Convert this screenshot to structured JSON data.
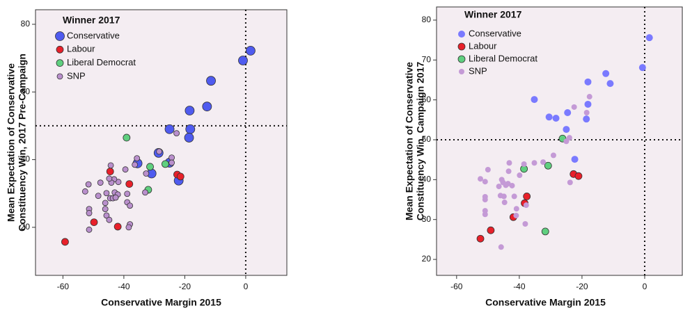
{
  "chart_data": [
    {
      "type": "scatter",
      "x_label": "Conservative Margin 2015",
      "y_label": [
        "Mean Expectation of Conservative",
        "Constituency Win, 2017 Pre-Campaign"
      ],
      "legend_title": "Winner 2017",
      "legend": "upper left",
      "background": "#f4edf2",
      "xlim": [
        -69,
        13.5
      ],
      "ylim": [
        5.8,
        84.3
      ],
      "xticks": [
        -60,
        -40,
        -20,
        0
      ],
      "yticks": [
        20,
        40,
        60,
        80
      ],
      "ref_x": 0,
      "ref_y": 50,
      "series": [
        {
          "name": "Conservative",
          "color": "#4f5bef",
          "edgecolor": "#333333",
          "marker_size": 6.5,
          "x": [
            1.6,
            -0.9,
            -11.4,
            -12.7,
            -18.4,
            -18.2,
            -25,
            -18.6,
            -28.6,
            -35.5,
            -30.9,
            -25,
            -22
          ],
          "values": [
            72.2,
            69.3,
            63.3,
            55.7,
            54.5,
            49,
            49,
            46.5,
            42,
            38.9,
            35.9,
            39.1,
            33.8
          ]
        },
        {
          "name": "Labour",
          "color": "#e8202a",
          "edgecolor": "#333333",
          "marker_size": 5,
          "x": [
            -44.5,
            -38.2,
            -22.5,
            -21.4,
            -49.8,
            -42,
            -59.3
          ],
          "values": [
            36.5,
            32.8,
            35.6,
            35,
            21.5,
            20.2,
            15.7
          ]
        },
        {
          "name": "Liberal Democrat",
          "color": "#5fcf7f",
          "edgecolor": "#333333",
          "marker_size": 5,
          "x": [
            -39.1,
            -31.4,
            -26.4,
            -32
          ],
          "values": [
            46.5,
            37.9,
            38.7,
            31.1
          ]
        },
        {
          "name": "SNP",
          "color": "#b98fcc",
          "edgecolor": "#333333",
          "marker_size": 4,
          "x": [
            -22.7,
            -24.3,
            -24.3,
            -28.4,
            -32.7,
            -33,
            -35.7,
            -36.4,
            -39.5,
            -41.8,
            -43.2,
            -44.1,
            -44.3,
            -44.8,
            -47.7,
            -51.6,
            -43,
            -44.5,
            -43.6,
            -45.7,
            -46.1,
            -46.1,
            -48.4,
            -38.9,
            -42,
            -38.9,
            -38,
            -38,
            -38.4,
            -45.7,
            -44.8,
            -51.4,
            -51.4,
            -51.4,
            -52.7,
            -42.7
          ],
          "values": [
            47.8,
            40.6,
            39.1,
            42.4,
            35.9,
            30.3,
            40.4,
            38.5,
            37.1,
            33.4,
            34.2,
            33.2,
            38.3,
            34.4,
            33.2,
            32.7,
            30.3,
            28.6,
            28.6,
            30.1,
            27.2,
            25.4,
            29.3,
            29.9,
            29.7,
            27.4,
            26.4,
            20.9,
            20,
            23.5,
            22.2,
            25.4,
            24.2,
            19.3,
            30.6,
            28.8
          ]
        }
      ]
    },
    {
      "type": "scatter",
      "x_label": "Conservative Margin 2015",
      "y_label": [
        "Mean Expectation of Conservative",
        "Constituency Win, Campaign 2017"
      ],
      "legend_title": "Winner 2017",
      "legend": "upper left",
      "background": "#f4edf2",
      "xlim": [
        -66.4,
        12
      ],
      "ylim": [
        16,
        83.3
      ],
      "xticks": [
        -60,
        -40,
        -20,
        0
      ],
      "yticks": [
        20,
        30,
        40,
        50,
        60,
        70,
        80
      ],
      "ref_x": 0,
      "ref_y": 50,
      "series": [
        {
          "name": "Conservative",
          "color": "#7a7aff",
          "edgecolor": null,
          "marker_size": 5,
          "x": [
            1.5,
            -0.7,
            -12.4,
            -11,
            -18.1,
            -18.1,
            -18.6,
            -35.2,
            -30.5,
            -28.3,
            -24.6,
            -25,
            -22.3
          ],
          "values": [
            75.6,
            68.1,
            66.6,
            64.1,
            64.5,
            58.9,
            55.2,
            60.1,
            55.7,
            55.4,
            56.8,
            52.6,
            45.1
          ]
        },
        {
          "name": "Labour",
          "color": "#e8202a",
          "edgecolor": "#333333",
          "marker_size": 5,
          "x": [
            -52.4,
            -49.1,
            -37.6,
            -38.3,
            -22.7,
            -21.1,
            -41.9
          ],
          "values": [
            25.2,
            27.3,
            35.8,
            34.1,
            41.4,
            40.9,
            30.6
          ]
        },
        {
          "name": "Liberal Democrat",
          "color": "#5fcf7f",
          "edgecolor": "#333333",
          "marker_size": 5,
          "x": [
            -38.5,
            -30.8,
            -26.2,
            -31.7
          ],
          "values": [
            42.7,
            43.5,
            50.3,
            27
          ]
        },
        {
          "name": "SNP",
          "color": "#c49ad6",
          "edgecolor": null,
          "marker_size": 4,
          "x": [
            -17.6,
            -22.5,
            -24,
            -25,
            -29.1,
            -32.4,
            -35.2,
            -38.5,
            -43.2,
            -43.4,
            -39.9,
            -45.6,
            -45.2,
            -44.3,
            -43.6,
            -42.3,
            -46.5,
            -50.9,
            -50,
            -52.4,
            -46,
            -44.9,
            -41.6,
            -44.7,
            -40.9,
            -37.8,
            -50.9,
            -50.9,
            -50.9,
            -50.9,
            -45.8,
            -38.1,
            -41,
            -23.8,
            -18.5
          ],
          "values": [
            60.8,
            58.2,
            50.5,
            49.6,
            46.1,
            44.4,
            44.2,
            43.9,
            44.2,
            42.1,
            41.1,
            40,
            39.3,
            38.6,
            39,
            38.5,
            38.3,
            39.5,
            42.5,
            40.2,
            36,
            35.8,
            35.8,
            34.3,
            32.7,
            33.6,
            35.7,
            35,
            32.2,
            31.3,
            23.1,
            28.9,
            31,
            39.3,
            56.8
          ]
        }
      ]
    }
  ]
}
